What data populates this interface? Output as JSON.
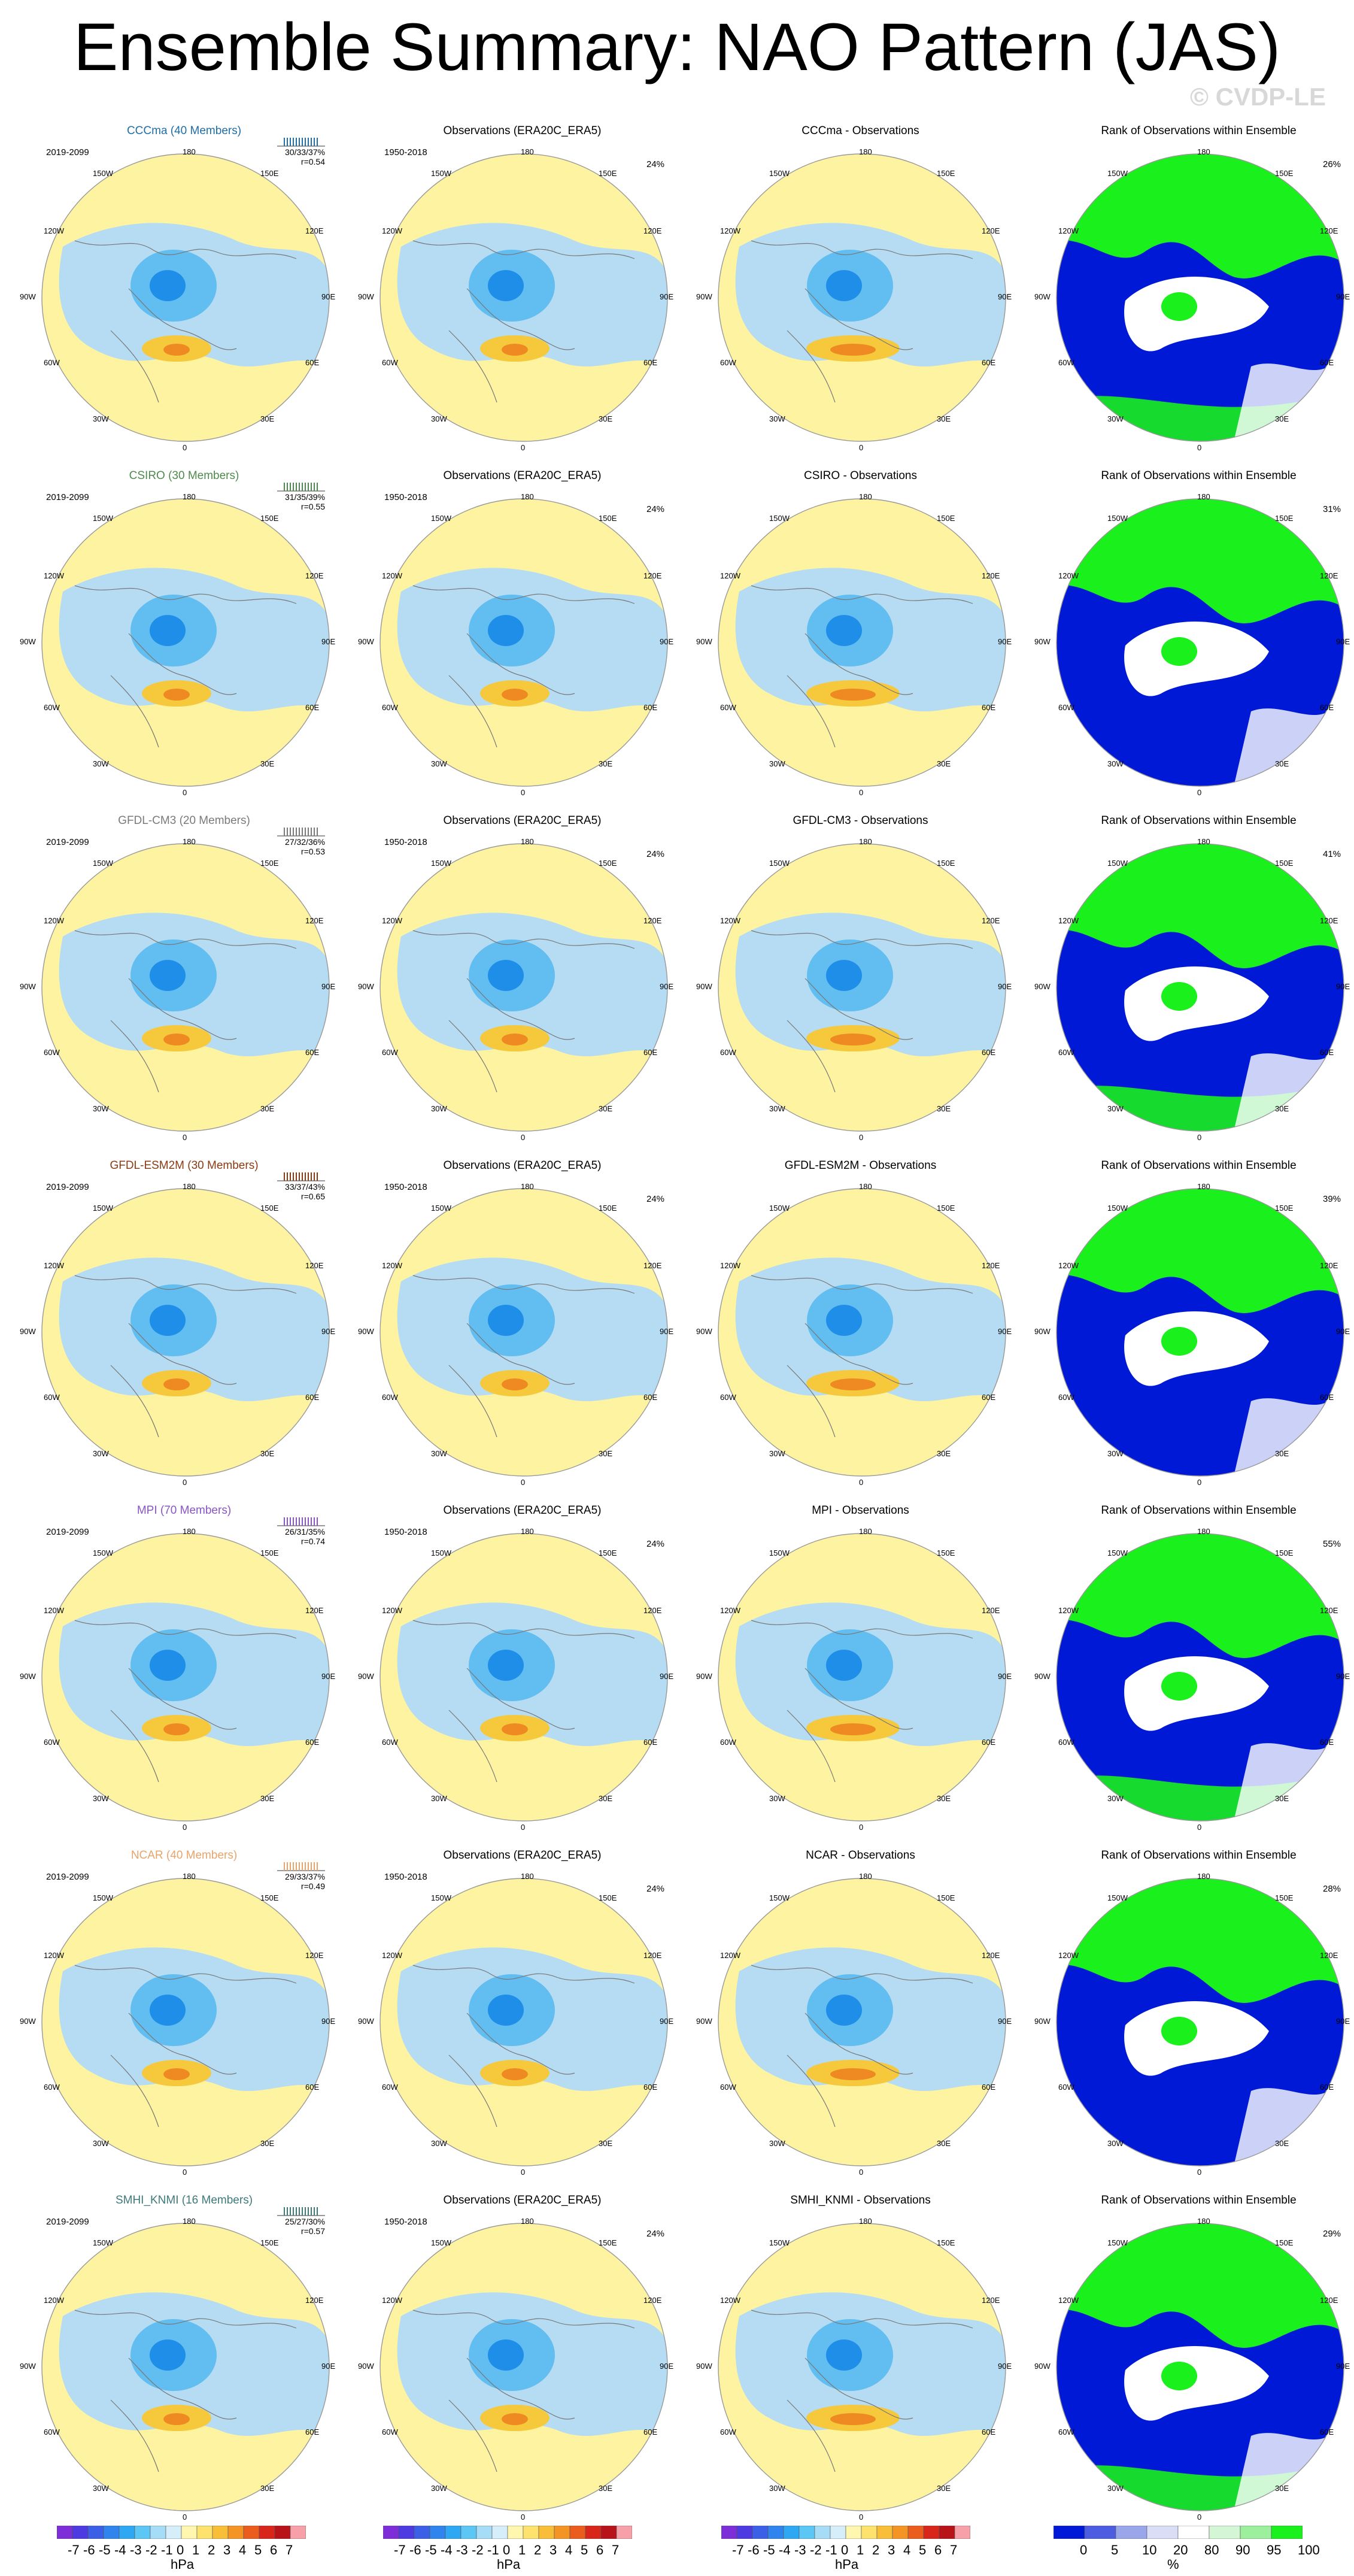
{
  "title": "Ensemble Summary: NAO Pattern (JAS)",
  "watermark": "© CVDP-LE",
  "obs_title": "Observations (ERA20C_ERA5)",
  "rank_title": "Rank of Observations within Ensemble",
  "obs_period": "1950-2018",
  "obs_pct": "24%",
  "longitudes": {
    "n": "180",
    "s": "0",
    "e": "90E",
    "w": "90W",
    "ne1": "150E",
    "ne2": "120E",
    "se1": "60E",
    "se2": "30E",
    "nw1": "150W",
    "nw2": "120W",
    "sw1": "60W",
    "sw2": "30W"
  },
  "colors": {
    "neg_strong": "#1e8ee8",
    "neg_mid": "#62bdf0",
    "neg_weak": "#b5dcf2",
    "pos_weak": "#fdf3a0",
    "pos_mid": "#f6c93d",
    "pos_strong": "#ef8a22",
    "rank_low": "#0019d6",
    "rank_mid": "#ffffff",
    "rank_high": "#19f01c"
  },
  "models": [
    {
      "name": "CCCma (40 Members)",
      "color": "#1f6ea8",
      "period": "2019-2099",
      "pcts": "30/33/37%",
      "r": "r=0.54",
      "diff_title": "CCCma - Observations",
      "rank_pct": "26%"
    },
    {
      "name": "CSIRO (30 Members)",
      "color": "#4e8a4e",
      "period": "2019-2099",
      "pcts": "31/35/39%",
      "r": "r=0.55",
      "diff_title": "CSIRO - Observations",
      "rank_pct": "31%"
    },
    {
      "name": "GFDL-CM3 (20 Members)",
      "color": "#7a7a7a",
      "period": "2019-2099",
      "pcts": "27/32/36%",
      "r": "r=0.53",
      "diff_title": "GFDL-CM3 - Observations",
      "rank_pct": "41%"
    },
    {
      "name": "GFDL-ESM2M (30 Members)",
      "color": "#8a3a12",
      "period": "2019-2099",
      "pcts": "33/37/43%",
      "r": "r=0.65",
      "diff_title": "GFDL-ESM2M - Observations",
      "rank_pct": "39%"
    },
    {
      "name": "MPI (70 Members)",
      "color": "#8a55c6",
      "period": "2019-2099",
      "pcts": "26/31/35%",
      "r": "r=0.74",
      "diff_title": "MPI - Observations",
      "rank_pct": "55%"
    },
    {
      "name": "NCAR (40 Members)",
      "color": "#e8a46a",
      "period": "2019-2099",
      "pcts": "29/33/37%",
      "r": "r=0.49",
      "diff_title": "NCAR - Observations",
      "rank_pct": "28%"
    },
    {
      "name": "SMHI_KNMI (16 Members)",
      "color": "#3e7a7a",
      "period": "2019-2099",
      "pcts": "25/27/30%",
      "r": "r=0.57",
      "diff_title": "SMHI_KNMI - Observations",
      "rank_pct": "29%"
    }
  ],
  "colorbar_hpa": {
    "labels": [
      "-7",
      "-6",
      "-5",
      "-4",
      "-3",
      "-2",
      "-1",
      "0",
      "1",
      "2",
      "3",
      "4",
      "5",
      "6",
      "7"
    ],
    "unit": "hPa",
    "colors": [
      "#7d2ed8",
      "#4d3ae0",
      "#3c5fe8",
      "#2f84ee",
      "#2ea8f2",
      "#5cc6f4",
      "#a6dcf5",
      "#d6eefa",
      "#fff7b0",
      "#fde26e",
      "#f8be38",
      "#f39424",
      "#ea5d1c",
      "#d8261a",
      "#b9131a",
      "#f7a0a8"
    ]
  },
  "colorbar_rank": {
    "labels": [
      "0",
      "5",
      "10",
      "20",
      "80",
      "90",
      "95",
      "100"
    ],
    "unit": "%",
    "colors": [
      "#0019d6",
      "#4c5de2",
      "#9aa6ea",
      "#d9ddf6",
      "#ffffff",
      "#d4f6d4",
      "#9cf09d",
      "#19f01c"
    ]
  }
}
